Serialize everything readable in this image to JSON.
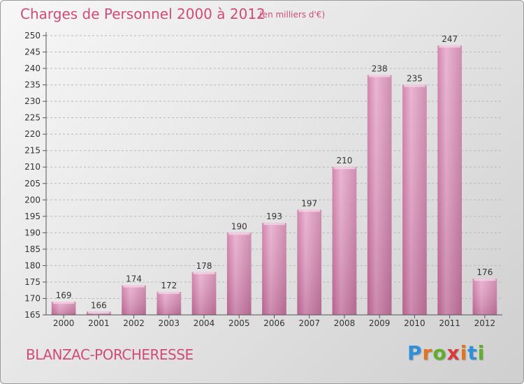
{
  "header": {
    "title": "Charges de Personnel 2000 à 2012",
    "subtitle": "(en milliers d'€)"
  },
  "footer": {
    "place": "BLANZAC-PORCHERESSE",
    "logo_text": "Proxiti"
  },
  "chart_data": {
    "type": "bar",
    "title": "Charges de Personnel 2000 à 2012",
    "subtitle": "(en milliers d'€)",
    "categories": [
      "2000",
      "2001",
      "2002",
      "2003",
      "2004",
      "2005",
      "2006",
      "2007",
      "2008",
      "2009",
      "2010",
      "2011",
      "2012"
    ],
    "values": [
      169,
      166,
      174,
      172,
      178,
      190,
      193,
      197,
      210,
      238,
      235,
      247,
      176
    ],
    "ylim": [
      165,
      250
    ],
    "yticks": [
      165,
      170,
      175,
      180,
      185,
      190,
      195,
      200,
      205,
      210,
      215,
      220,
      225,
      230,
      235,
      240,
      245,
      250
    ],
    "grid": "horizontal dashed",
    "bar_color": "#d98bb4",
    "title_color": "#d04a7a"
  },
  "logo_colors": [
    "#2f8fd8",
    "#e3731f",
    "#5fae2e",
    "#d93a3a",
    "#e3731f",
    "#2f8fd8",
    "#5fae2e"
  ]
}
